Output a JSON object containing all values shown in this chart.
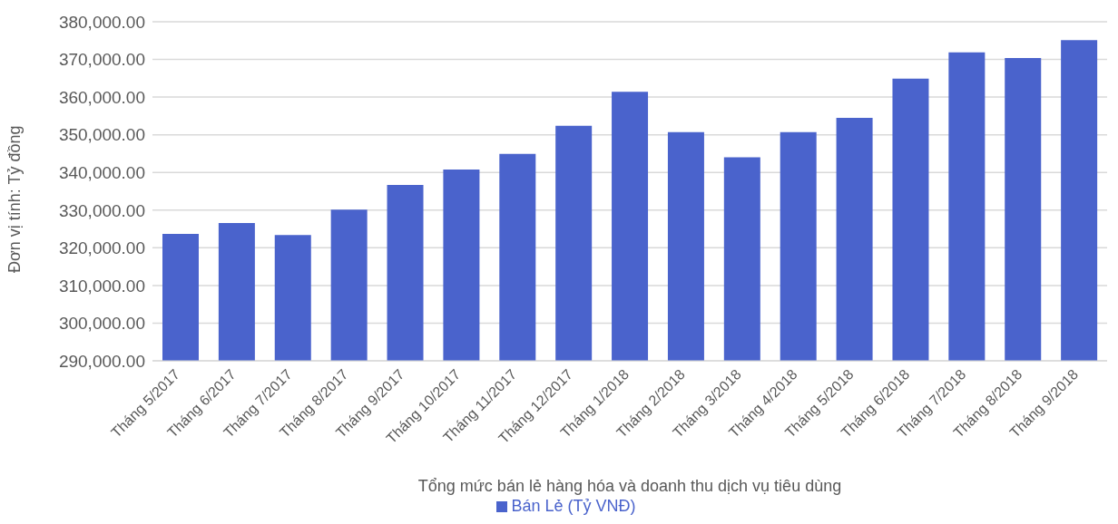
{
  "chart_data": {
    "type": "bar",
    "xlabel": "Tổng mức bán lẻ hàng hóa và doanh thu dịch vụ tiêu dùng",
    "ylabel": "Đơn vị tính: Tỷ đồng",
    "categories": [
      "Tháng 5/2017",
      "Tháng 6/2017",
      "Tháng 7/2017",
      "Tháng 8/2017",
      "Tháng 9/2017",
      "Tháng 10/2017",
      "Tháng 11/2017",
      "Tháng 12/2017",
      "Tháng 1/2018",
      "Tháng 2/2018",
      "Tháng 3/2018",
      "Tháng 4/2018",
      "Tháng 5/2018",
      "Tháng 6/2018",
      "Tháng 7/2018",
      "Tháng 8/2018",
      "Tháng 9/2018"
    ],
    "series": [
      {
        "name": "Bán Lẻ (Tỷ VNĐ)",
        "color": "#4a63cc",
        "values": [
          323700,
          326600,
          323400,
          330100,
          336700,
          340800,
          344900,
          352400,
          361400,
          350700,
          344000,
          350700,
          354500,
          364900,
          371900,
          370400,
          375100
        ]
      }
    ],
    "ylim": [
      290000,
      380000
    ],
    "yticks": [
      {
        "value": 290000,
        "label": "290,000.00"
      },
      {
        "value": 300000,
        "label": "300,000.00"
      },
      {
        "value": 310000,
        "label": "310,000.00"
      },
      {
        "value": 320000,
        "label": "320,000.00"
      },
      {
        "value": 330000,
        "label": "330,000.00"
      },
      {
        "value": 340000,
        "label": "340,000.00"
      },
      {
        "value": 350000,
        "label": "350,000.00"
      },
      {
        "value": 360000,
        "label": "360,000.00"
      },
      {
        "value": 370000,
        "label": "370,000.00"
      },
      {
        "value": 380000,
        "label": "380,000.00"
      }
    ],
    "grid": "y",
    "legend": "bottom"
  }
}
